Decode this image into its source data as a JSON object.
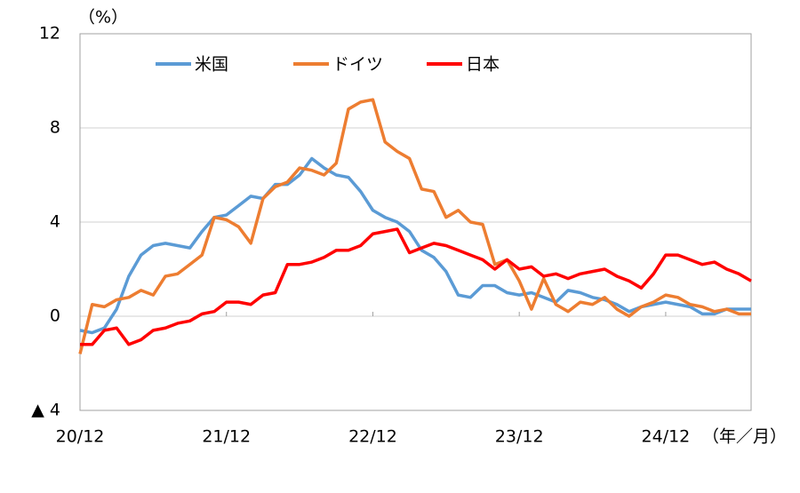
{
  "chart_data": {
    "type": "line",
    "y_unit": "（%）",
    "x_unit": "（年／月）",
    "categories": [
      "20/12",
      null,
      null,
      null,
      null,
      null,
      null,
      null,
      null,
      null,
      null,
      null,
      "21/12",
      null,
      null,
      null,
      null,
      null,
      null,
      null,
      null,
      null,
      null,
      null,
      "22/12",
      null,
      null,
      null,
      null,
      null,
      null,
      null,
      null,
      null,
      null,
      null,
      "23/12",
      null,
      null,
      null,
      null,
      null,
      null,
      null,
      null,
      null,
      null,
      null,
      "24/12",
      null,
      null,
      null,
      null,
      null,
      null,
      null
    ],
    "series": [
      {
        "name": "米国",
        "color": "#5b9bd5",
        "values": [
          -0.6,
          -0.7,
          -0.5,
          0.3,
          1.7,
          2.6,
          3.0,
          3.1,
          3.0,
          2.9,
          3.6,
          4.2,
          4.3,
          4.7,
          5.1,
          5.0,
          5.6,
          5.6,
          6.0,
          6.7,
          6.3,
          6.0,
          5.9,
          5.3,
          4.5,
          4.2,
          4.0,
          3.6,
          2.8,
          2.5,
          1.9,
          0.9,
          0.8,
          1.3,
          1.3,
          1.0,
          0.9,
          1.0,
          0.8,
          0.6,
          1.1,
          1.0,
          0.8,
          0.7,
          0.5,
          0.2,
          0.4,
          0.5,
          0.6,
          0.5,
          0.4,
          0.1,
          0.1,
          0.3,
          0.3,
          0.3
        ]
      },
      {
        "name": "ドイツ",
        "color": "#ed7d31",
        "values": [
          -1.6,
          0.5,
          0.4,
          0.7,
          0.8,
          1.1,
          0.9,
          1.7,
          1.8,
          2.2,
          2.6,
          4.2,
          4.1,
          3.8,
          3.1,
          5.0,
          5.5,
          5.7,
          6.3,
          6.2,
          6.0,
          6.5,
          8.8,
          9.1,
          9.2,
          7.4,
          7.0,
          6.7,
          5.4,
          5.3,
          4.2,
          4.5,
          4.0,
          3.9,
          2.2,
          2.4,
          1.5,
          0.3,
          1.6,
          0.5,
          0.2,
          0.6,
          0.5,
          0.8,
          0.3,
          0.0,
          0.4,
          0.6,
          0.9,
          0.8,
          0.5,
          0.4,
          0.2,
          0.3,
          0.1,
          0.1
        ]
      },
      {
        "name": "日本",
        "color": "#ff0000",
        "values": [
          -1.2,
          -1.2,
          -0.6,
          -0.5,
          -1.2,
          -1.0,
          -0.6,
          -0.5,
          -0.3,
          -0.2,
          0.1,
          0.2,
          0.6,
          0.6,
          0.5,
          0.9,
          1.0,
          2.2,
          2.2,
          2.3,
          2.5,
          2.8,
          2.8,
          3.0,
          3.5,
          3.6,
          3.7,
          2.7,
          2.9,
          3.1,
          3.0,
          2.8,
          2.6,
          2.4,
          2.0,
          2.4,
          2.0,
          2.1,
          1.7,
          1.8,
          1.6,
          1.8,
          1.9,
          2.0,
          1.7,
          1.5,
          1.2,
          1.8,
          2.6,
          2.6,
          2.4,
          2.2,
          2.3,
          2.0,
          1.8,
          1.5
        ]
      }
    ],
    "ylim": [
      -4,
      12
    ],
    "yticks": [
      {
        "value": -4,
        "label": "▲ 4"
      },
      0,
      4,
      8,
      12
    ],
    "grid": true
  }
}
